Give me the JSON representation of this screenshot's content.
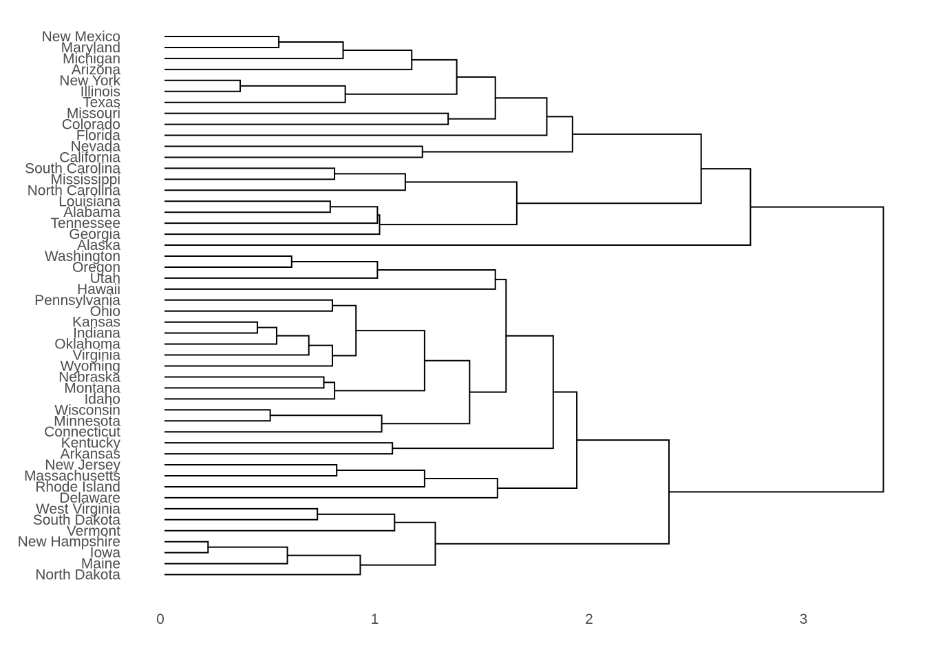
{
  "chart_data": {
    "type": "dendrogram",
    "orientation": "horizontal",
    "title": "",
    "xlabel": "",
    "ylabel": "",
    "xlim": [
      0,
      3.35
    ],
    "x_ticks": [
      0,
      1,
      2,
      3
    ],
    "grid": false,
    "line_color": "#000000",
    "text_color": "#4d4d4d",
    "leaves": [
      "New Mexico",
      "Maryland",
      "Michigan",
      "Arizona",
      "New York",
      "Illinois",
      "Texas",
      "Missouri",
      "Colorado",
      "Florida",
      "Nevada",
      "California",
      "South Carolina",
      "Mississippi",
      "North Carolina",
      "Louisiana",
      "Alabama",
      "Tennessee",
      "Georgia",
      "Alaska",
      "Washington",
      "Oregon",
      "Utah",
      "Hawaii",
      "Pennsylvania",
      "Ohio",
      "Kansas",
      "Indiana",
      "Oklahoma",
      "Virginia",
      "Wyoming",
      "Nebraska",
      "Montana",
      "Idaho",
      "Wisconsin",
      "Minnesota",
      "Connecticut",
      "Kentucky",
      "Arkansas",
      "New Jersey",
      "Massachusetts",
      "Rhode Island",
      "Delaware",
      "West Virginia",
      "South Dakota",
      "Vermont",
      "New Hampshire",
      "Iowa",
      "Maine",
      "North Dakota"
    ],
    "merges": [
      {
        "a": "New Mexico",
        "b": "Maryland",
        "height": 0.53
      },
      {
        "a": "m1",
        "b": "Michigan",
        "height": 0.83
      },
      {
        "a": "m2",
        "b": "Arizona",
        "height": 1.15
      },
      {
        "a": "New York",
        "b": "Illinois",
        "height": 0.35
      },
      {
        "a": "m4",
        "b": "Texas",
        "height": 0.84
      },
      {
        "a": "m3",
        "b": "m5",
        "height": 1.36
      },
      {
        "a": "Missouri",
        "b": "Colorado",
        "height": 1.32
      },
      {
        "a": "m6",
        "b": "m7",
        "height": 1.54
      },
      {
        "a": "m8",
        "b": "Florida",
        "height": 1.78
      },
      {
        "a": "Nevada",
        "b": "California",
        "height": 1.2
      },
      {
        "a": "m9",
        "b": "m10",
        "height": 1.9
      },
      {
        "a": "South Carolina",
        "b": "Mississippi",
        "height": 0.79
      },
      {
        "a": "m12",
        "b": "North Carolina",
        "height": 1.12
      },
      {
        "a": "Louisiana",
        "b": "Alabama",
        "height": 0.77
      },
      {
        "a": "m14",
        "b": "Tennessee",
        "height": 0.99
      },
      {
        "a": "m15",
        "b": "Georgia",
        "height": 1.0
      },
      {
        "a": "m13",
        "b": "m16",
        "height": 1.64
      },
      {
        "a": "m11",
        "b": "m17",
        "height": 2.5
      },
      {
        "a": "m18",
        "b": "Alaska",
        "height": 2.73
      },
      {
        "a": "Washington",
        "b": "Oregon",
        "height": 0.59
      },
      {
        "a": "m20",
        "b": "Utah",
        "height": 0.99
      },
      {
        "a": "m21",
        "b": "Hawaii",
        "height": 1.54
      },
      {
        "a": "Pennsylvania",
        "b": "Ohio",
        "height": 0.78
      },
      {
        "a": "Kansas",
        "b": "Indiana",
        "height": 0.43
      },
      {
        "a": "m24",
        "b": "Oklahoma",
        "height": 0.52
      },
      {
        "a": "m25",
        "b": "Virginia",
        "height": 0.67
      },
      {
        "a": "m26",
        "b": "Wyoming",
        "height": 0.78
      },
      {
        "a": "m23",
        "b": "m27",
        "height": 0.89
      },
      {
        "a": "Nebraska",
        "b": "Montana",
        "height": 0.74
      },
      {
        "a": "m29",
        "b": "Idaho",
        "height": 0.79
      },
      {
        "a": "m28",
        "b": "m30",
        "height": 1.21
      },
      {
        "a": "Wisconsin",
        "b": "Minnesota",
        "height": 0.49
      },
      {
        "a": "m32",
        "b": "Connecticut",
        "height": 1.01
      },
      {
        "a": "m31",
        "b": "m33",
        "height": 1.42
      },
      {
        "a": "m22",
        "b": "m34",
        "height": 1.59
      },
      {
        "a": "Kentucky",
        "b": "Arkansas",
        "height": 1.06
      },
      {
        "a": "m35",
        "b": "m36",
        "height": 1.81
      },
      {
        "a": "New Jersey",
        "b": "Massachusetts",
        "height": 0.8
      },
      {
        "a": "m38",
        "b": "Rhode Island",
        "height": 1.21
      },
      {
        "a": "m39",
        "b": "Delaware",
        "height": 1.55
      },
      {
        "a": "m37",
        "b": "m40",
        "height": 1.92
      },
      {
        "a": "West Virginia",
        "b": "South Dakota",
        "height": 0.71
      },
      {
        "a": "m42",
        "b": "Vermont",
        "height": 1.07
      },
      {
        "a": "New Hampshire",
        "b": "Iowa",
        "height": 0.2
      },
      {
        "a": "m44",
        "b": "Maine",
        "height": 0.57
      },
      {
        "a": "m45",
        "b": "North Dakota",
        "height": 0.91
      },
      {
        "a": "m43",
        "b": "m46",
        "height": 1.26
      },
      {
        "a": "m41",
        "b": "m47",
        "height": 2.35
      },
      {
        "a": "m19",
        "b": "m48",
        "height": 3.35
      }
    ]
  }
}
